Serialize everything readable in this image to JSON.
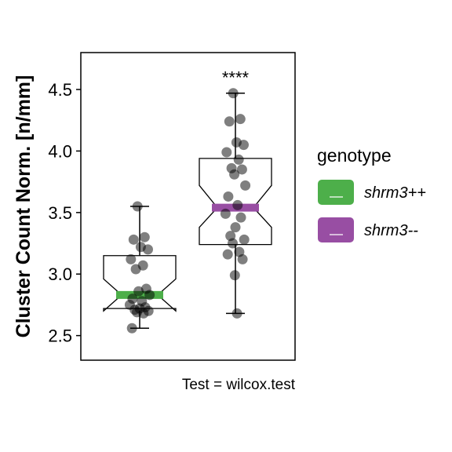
{
  "chart_data": {
    "type": "boxplot",
    "ylabel": "Cluster Count Norm. [n/mm]",
    "ylim": [
      2.3,
      4.8
    ],
    "yticks": [
      2.5,
      3.0,
      3.5,
      4.0,
      4.5
    ],
    "ytick_labels": [
      "2.5",
      "3.0",
      "3.5",
      "4.0",
      "4.5"
    ],
    "grid": false,
    "caption": "Test = wilcox.test",
    "legend": {
      "title": "genotype",
      "placement": "right",
      "entries": [
        {
          "label": "shrm3++",
          "color": "#4daf4a"
        },
        {
          "label": "shrm3--",
          "color": "#984ea3"
        }
      ]
    },
    "significance": {
      "label": "****",
      "group": 1
    },
    "series": [
      {
        "name": "shrm3++",
        "color": "#4daf4a",
        "box": {
          "whisker_low": 2.56,
          "q1": 2.72,
          "median": 2.83,
          "q3": 3.15,
          "whisker_high": 3.55,
          "notch_low": 2.7,
          "notch_high": 2.96
        },
        "points": [
          3.55,
          3.3,
          3.28,
          3.22,
          3.2,
          3.12,
          3.07,
          3.04,
          2.88,
          2.86,
          2.83,
          2.8,
          2.78,
          2.75,
          2.73,
          2.72,
          2.71,
          2.7,
          2.69,
          2.68,
          2.56
        ]
      },
      {
        "name": "shrm3--",
        "color": "#984ea3",
        "box": {
          "whisker_low": 2.68,
          "q1": 3.24,
          "median": 3.54,
          "q3": 3.94,
          "whisker_high": 4.47,
          "notch_low": 3.38,
          "notch_high": 3.72
        },
        "points": [
          4.47,
          4.26,
          4.24,
          4.07,
          4.05,
          3.99,
          3.93,
          3.86,
          3.85,
          3.81,
          3.72,
          3.63,
          3.56,
          3.49,
          3.46,
          3.38,
          3.31,
          3.28,
          3.25,
          3.18,
          3.16,
          3.12,
          2.99,
          2.68
        ]
      }
    ]
  }
}
